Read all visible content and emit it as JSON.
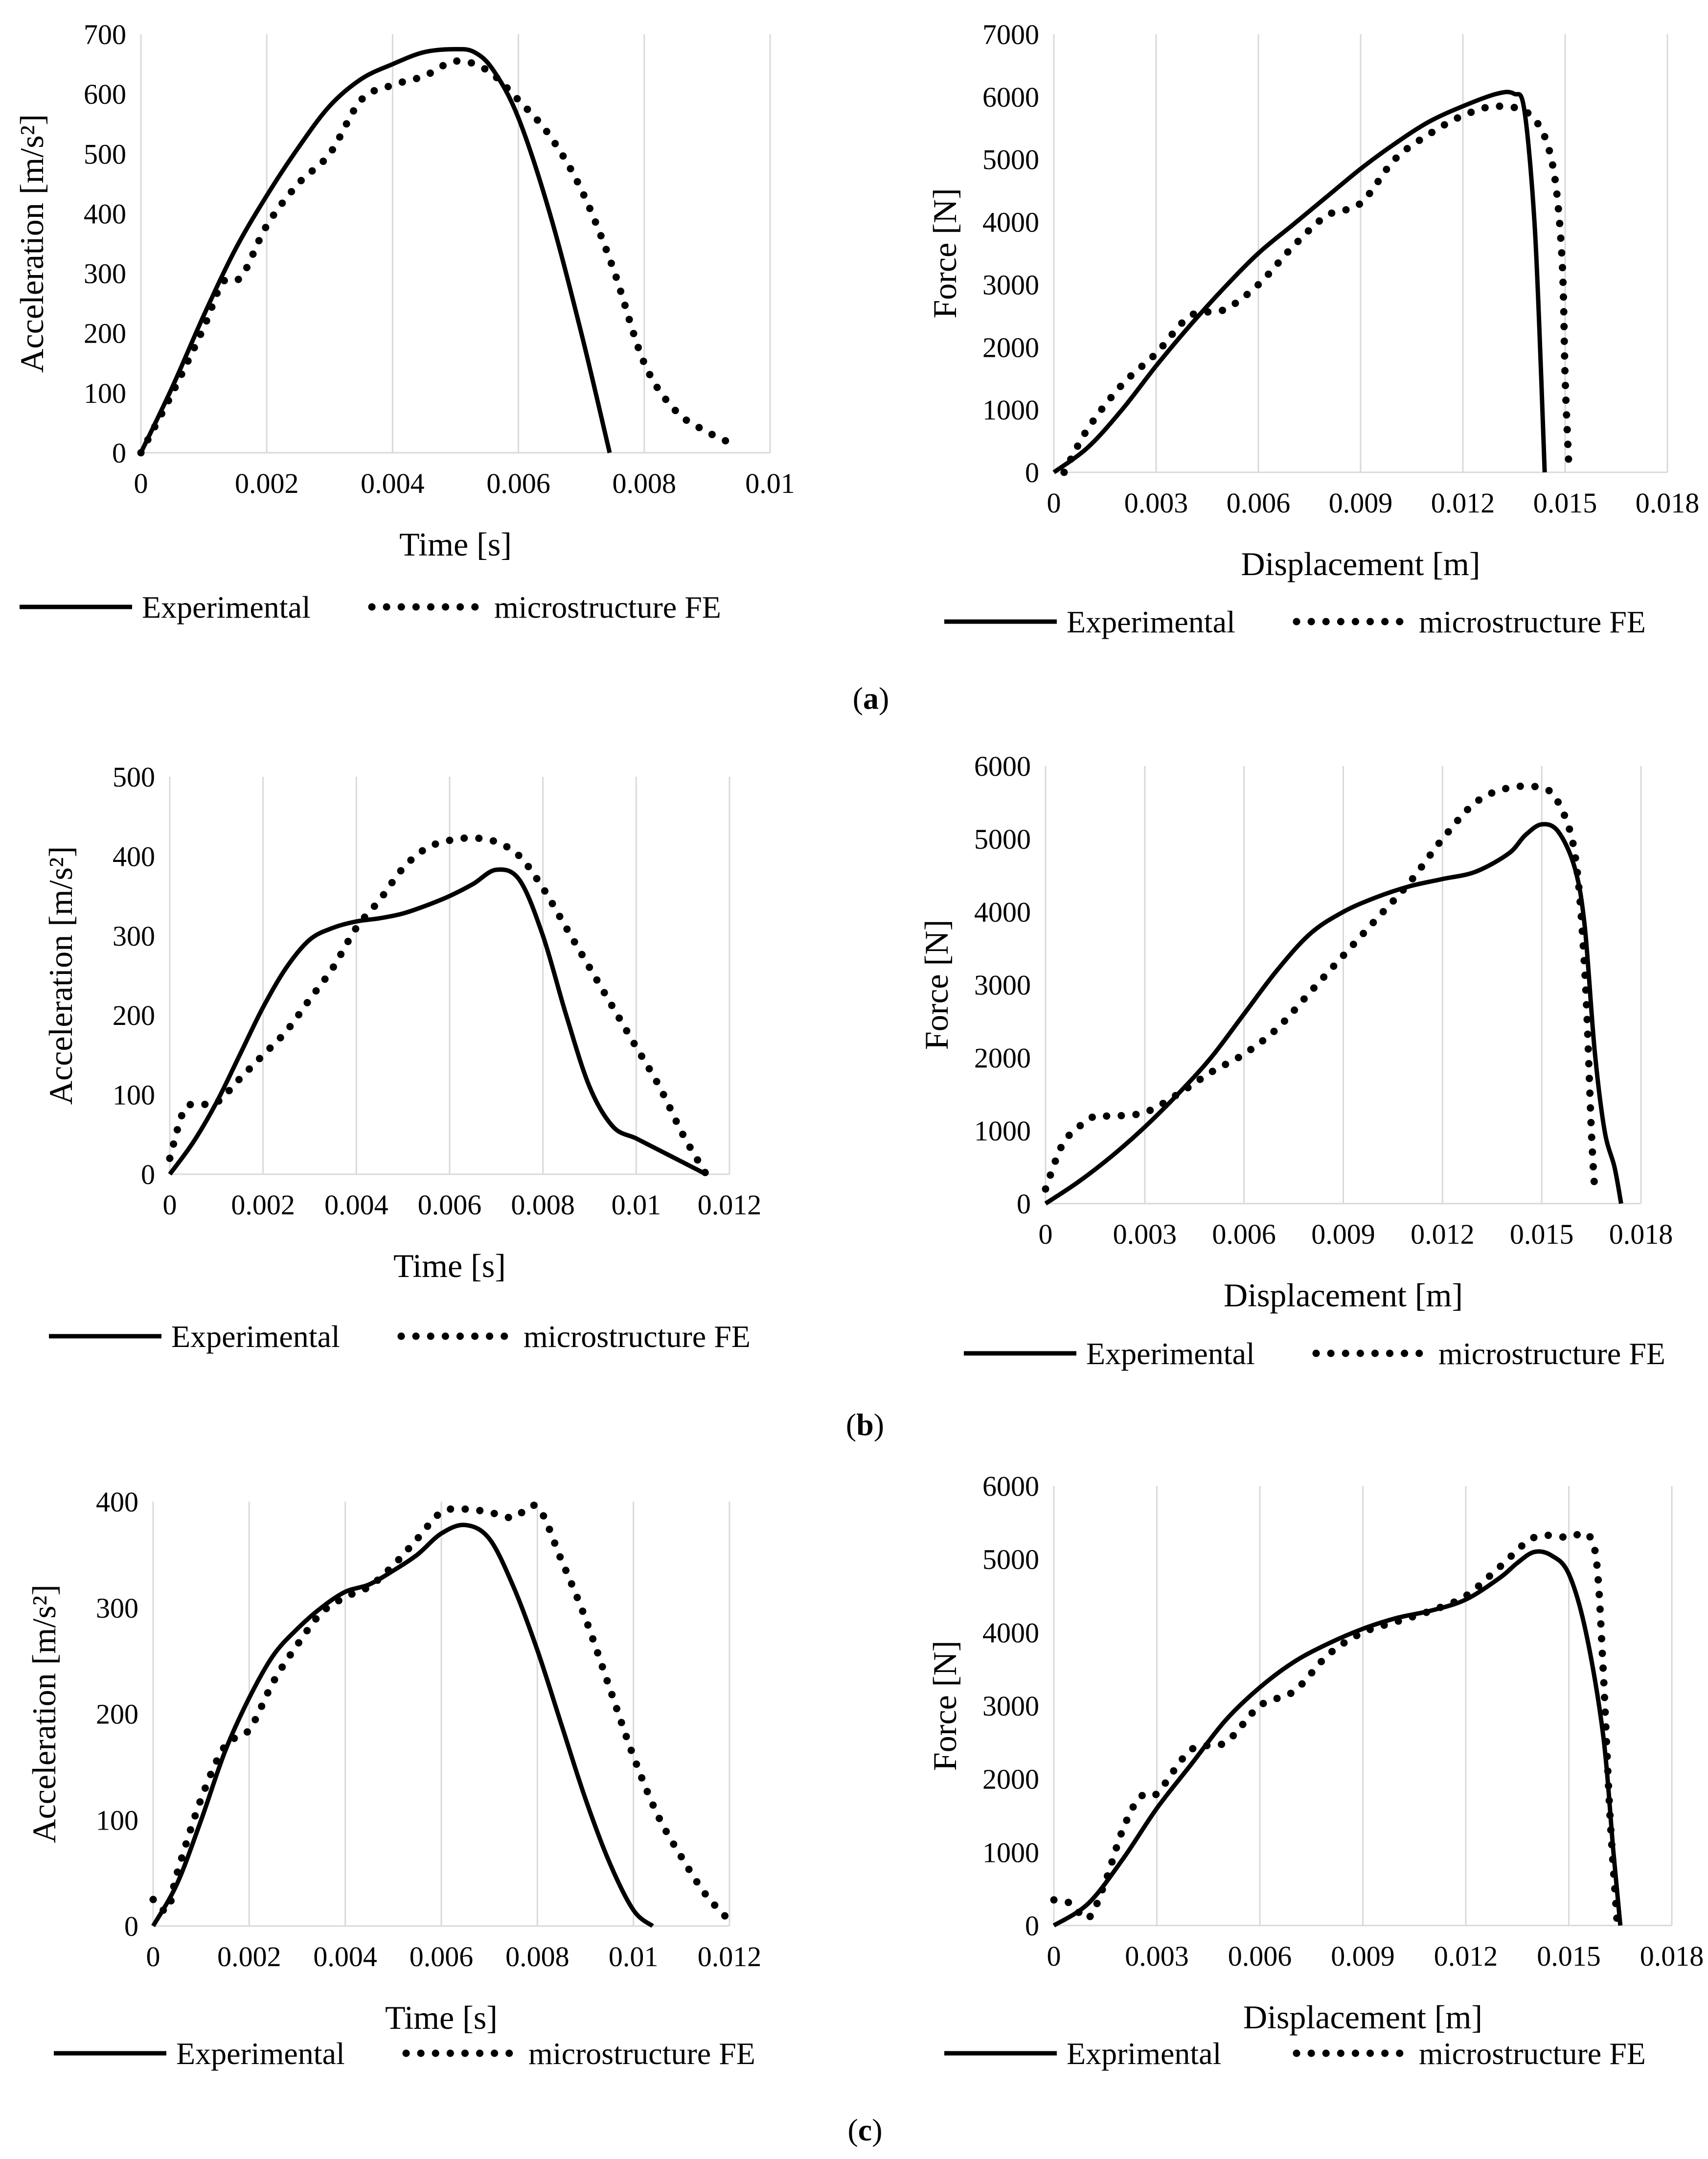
{
  "panels": [
    {
      "open": "(",
      "letter": "a",
      "close": ")"
    },
    {
      "open": "(",
      "letter": "b",
      "close": ")"
    },
    {
      "open": "(",
      "letter": "c",
      "close": ")"
    }
  ],
  "chart_data": [
    {
      "type": "line",
      "panel": "a",
      "xlabel": "Time [s]",
      "ylabel": "Acceleration [m/s²]",
      "xlim": [
        0,
        0.01
      ],
      "ylim": [
        0,
        700
      ],
      "xticks": [
        0,
        0.002,
        0.004,
        0.006,
        0.008,
        0.01
      ],
      "xtick_labels": [
        "0",
        "0.002",
        "0.004",
        "0.006",
        "0.008",
        "0.01"
      ],
      "yticks": [
        0,
        100,
        200,
        300,
        400,
        500,
        600,
        700
      ],
      "ytick_labels": [
        "0",
        "100",
        "200",
        "300",
        "400",
        "500",
        "600",
        "700"
      ],
      "grid": "vertical",
      "legend": "bottom",
      "series": [
        {
          "name": "Experimental",
          "style": "solid",
          "x": [
            0,
            0.0005,
            0.001,
            0.0015,
            0.002,
            0.0025,
            0.003,
            0.0035,
            0.004,
            0.0045,
            0.005,
            0.0053,
            0.0056,
            0.006,
            0.0065,
            0.007,
            0.00745
          ],
          "y": [
            0,
            110,
            230,
            340,
            430,
            510,
            580,
            625,
            650,
            670,
            675,
            670,
            640,
            560,
            400,
            200,
            0
          ]
        },
        {
          "name": "microstructure FE",
          "style": "dotted",
          "x": [
            0,
            0.0005,
            0.001,
            0.0013,
            0.0016,
            0.002,
            0.0025,
            0.003,
            0.0035,
            0.004,
            0.0045,
            0.005,
            0.0055,
            0.006,
            0.0065,
            0.007,
            0.0075,
            0.008,
            0.0085,
            0.009,
            0.0094
          ],
          "y": [
            0,
            100,
            210,
            285,
            295,
            380,
            450,
            500,
            590,
            615,
            630,
            655,
            640,
            590,
            530,
            440,
            310,
            150,
            70,
            35,
            15
          ]
        }
      ]
    },
    {
      "type": "line",
      "panel": "a",
      "xlabel": "Displacement [m]",
      "ylabel": "Force [N]",
      "xlim": [
        0,
        0.018
      ],
      "ylim": [
        0,
        7000
      ],
      "xticks": [
        0,
        0.003,
        0.006,
        0.009,
        0.012,
        0.015,
        0.018
      ],
      "xtick_labels": [
        "0",
        "0.003",
        "0.006",
        "0.009",
        "0.012",
        "0.015",
        "0.018"
      ],
      "yticks": [
        0,
        1000,
        2000,
        3000,
        4000,
        5000,
        6000,
        7000
      ],
      "ytick_labels": [
        "0",
        "1000",
        "2000",
        "3000",
        "4000",
        "5000",
        "6000",
        "7000"
      ],
      "grid": "vertical",
      "legend": "bottom",
      "series": [
        {
          "name": "Experimental",
          "style": "solid",
          "x": [
            0,
            0.001,
            0.002,
            0.003,
            0.004,
            0.005,
            0.006,
            0.007,
            0.008,
            0.009,
            0.01,
            0.011,
            0.012,
            0.013,
            0.0135,
            0.0138,
            0.0141,
            0.0143,
            0.0144
          ],
          "y": [
            0,
            400,
            1000,
            1700,
            2350,
            2950,
            3500,
            3950,
            4400,
            4850,
            5250,
            5600,
            5850,
            6050,
            6050,
            5800,
            4000,
            1500,
            0
          ]
        },
        {
          "name": "microstructure FE",
          "style": "dotted",
          "x": [
            0.0003,
            0.001,
            0.002,
            0.003,
            0.004,
            0.005,
            0.006,
            0.007,
            0.008,
            0.009,
            0.01,
            0.011,
            0.012,
            0.013,
            0.014,
            0.0146,
            0.0149,
            0.015,
            0.0151
          ],
          "y": [
            0,
            700,
            1400,
            1900,
            2500,
            2600,
            3000,
            3600,
            4100,
            4300,
            5000,
            5400,
            5700,
            5850,
            5700,
            5000,
            3500,
            1500,
            200
          ]
        }
      ]
    },
    {
      "type": "line",
      "panel": "b",
      "xlabel": "Time [s]",
      "ylabel": "Acceleration [m/s²]",
      "xlim": [
        0,
        0.012
      ],
      "ylim": [
        0,
        500
      ],
      "xticks": [
        0,
        0.002,
        0.004,
        0.006,
        0.008,
        0.01,
        0.012
      ],
      "xtick_labels": [
        "0",
        "0.002",
        "0.004",
        "0.006",
        "0.008",
        "0.01",
        "0.012"
      ],
      "yticks": [
        0,
        100,
        200,
        300,
        400,
        500
      ],
      "ytick_labels": [
        "0",
        "100",
        "200",
        "300",
        "400",
        "500"
      ],
      "grid": "vertical",
      "legend": "bottom",
      "series": [
        {
          "name": "Experimental",
          "style": "solid",
          "x": [
            0,
            0.0005,
            0.001,
            0.0015,
            0.002,
            0.0025,
            0.003,
            0.0035,
            0.004,
            0.0045,
            0.005,
            0.0055,
            0.006,
            0.0065,
            0.007,
            0.0075,
            0.008,
            0.0085,
            0.009,
            0.0095,
            0.01,
            0.0105,
            0.011,
            0.0115
          ],
          "y": [
            0,
            40,
            90,
            150,
            210,
            260,
            295,
            310,
            318,
            322,
            328,
            338,
            350,
            365,
            383,
            370,
            300,
            200,
            110,
            60,
            45,
            30,
            15,
            0
          ]
        },
        {
          "name": "microstructure FE",
          "style": "dotted",
          "x": [
            0,
            0.0003,
            0.0006,
            0.001,
            0.0015,
            0.002,
            0.0025,
            0.003,
            0.0035,
            0.004,
            0.0045,
            0.005,
            0.0055,
            0.006,
            0.0065,
            0.007,
            0.0075,
            0.008,
            0.0085,
            0.009,
            0.0095,
            0.01,
            0.0105,
            0.011,
            0.0115
          ],
          "y": [
            20,
            80,
            88,
            90,
            120,
            150,
            180,
            220,
            260,
            310,
            345,
            385,
            410,
            420,
            423,
            418,
            400,
            360,
            310,
            260,
            210,
            160,
            110,
            50,
            0
          ]
        }
      ]
    },
    {
      "type": "line",
      "panel": "b",
      "xlabel": "Displacement [m]",
      "ylabel": "Force [N]",
      "xlim": [
        0,
        0.018
      ],
      "ylim": [
        0,
        6000
      ],
      "xticks": [
        0,
        0.003,
        0.006,
        0.009,
        0.012,
        0.015,
        0.018
      ],
      "xtick_labels": [
        "0",
        "0.003",
        "0.006",
        "0.009",
        "0.012",
        "0.015",
        "0.018"
      ],
      "yticks": [
        0,
        1000,
        2000,
        3000,
        4000,
        5000,
        6000
      ],
      "ytick_labels": [
        "0",
        "1000",
        "2000",
        "3000",
        "4000",
        "5000",
        "6000"
      ],
      "grid": "vertical",
      "legend": "bottom",
      "series": [
        {
          "name": "Experimental",
          "style": "solid",
          "x": [
            0,
            0.001,
            0.002,
            0.003,
            0.004,
            0.005,
            0.006,
            0.007,
            0.008,
            0.009,
            0.01,
            0.011,
            0.012,
            0.013,
            0.014,
            0.0145,
            0.015,
            0.0155,
            0.016,
            0.0163,
            0.0166,
            0.0169,
            0.0172,
            0.0174
          ],
          "y": [
            0,
            300,
            650,
            1050,
            1500,
            2000,
            2600,
            3200,
            3700,
            4000,
            4200,
            4350,
            4450,
            4550,
            4800,
            5050,
            5200,
            5100,
            4600,
            3800,
            2100,
            1000,
            500,
            0
          ]
        },
        {
          "name": "microstructure FE",
          "style": "dotted",
          "x": [
            0,
            0.0005,
            0.001,
            0.0015,
            0.002,
            0.003,
            0.004,
            0.005,
            0.006,
            0.007,
            0.008,
            0.009,
            0.01,
            0.011,
            0.012,
            0.013,
            0.014,
            0.015,
            0.0155,
            0.016,
            0.0163,
            0.0165,
            0.0166
          ],
          "y": [
            200,
            800,
            1050,
            1200,
            1200,
            1250,
            1500,
            1800,
            2050,
            2400,
            2900,
            3400,
            3900,
            4400,
            5000,
            5500,
            5700,
            5700,
            5500,
            4800,
            3200,
            1000,
            200
          ]
        }
      ]
    },
    {
      "type": "line",
      "panel": "c",
      "xlabel": "Time [s]",
      "ylabel": "Acceleration [m/s²]",
      "xlim": [
        0,
        0.012
      ],
      "ylim": [
        0,
        400
      ],
      "xticks": [
        0,
        0.002,
        0.004,
        0.006,
        0.008,
        0.01,
        0.012
      ],
      "xtick_labels": [
        "0",
        "0.002",
        "0.004",
        "0.006",
        "0.008",
        "0.01",
        "0.012"
      ],
      "yticks": [
        0,
        100,
        200,
        300,
        400
      ],
      "ytick_labels": [
        "0",
        "100",
        "200",
        "300",
        "400"
      ],
      "grid": "vertical",
      "legend": "bottom",
      "series": [
        {
          "name": "Experimental",
          "style": "solid",
          "x": [
            0,
            0.0005,
            0.001,
            0.0015,
            0.002,
            0.0025,
            0.003,
            0.0035,
            0.004,
            0.0045,
            0.005,
            0.0055,
            0.006,
            0.0065,
            0.007,
            0.0075,
            0.008,
            0.0085,
            0.009,
            0.0095,
            0.01,
            0.0104
          ],
          "y": [
            0,
            40,
            100,
            165,
            215,
            255,
            280,
            300,
            315,
            322,
            335,
            350,
            370,
            378,
            365,
            320,
            260,
            190,
            120,
            60,
            15,
            0
          ]
        },
        {
          "name": "microstructure FE",
          "style": "dotted",
          "x": [
            0,
            0.0003,
            0.0005,
            0.001,
            0.0015,
            0.002,
            0.0025,
            0.003,
            0.0035,
            0.004,
            0.0045,
            0.005,
            0.0055,
            0.006,
            0.0065,
            0.007,
            0.0075,
            0.008,
            0.0085,
            0.009,
            0.0095,
            0.01,
            0.0105,
            0.011,
            0.0115,
            0.012
          ],
          "y": [
            25,
            15,
            50,
            120,
            170,
            185,
            230,
            265,
            295,
            310,
            320,
            340,
            365,
            390,
            393,
            390,
            385,
            395,
            345,
            290,
            225,
            160,
            105,
            65,
            30,
            5
          ]
        }
      ]
    },
    {
      "type": "line",
      "panel": "c",
      "xlabel": "Displacement [m]",
      "ylabel": "Force [N]",
      "xlim": [
        0,
        0.018
      ],
      "ylim": [
        0,
        6000
      ],
      "xticks": [
        0,
        0.003,
        0.006,
        0.009,
        0.012,
        0.015,
        0.018
      ],
      "xtick_labels": [
        "0",
        "0.003",
        "0.006",
        "0.009",
        "0.012",
        "0.015",
        "0.018"
      ],
      "yticks": [
        0,
        1000,
        2000,
        3000,
        4000,
        5000,
        6000
      ],
      "ytick_labels": [
        "0",
        "1000",
        "2000",
        "3000",
        "4000",
        "5000",
        "6000"
      ],
      "grid": "vertical",
      "legend": "bottom",
      "series": [
        {
          "name": "Exprimental",
          "style": "solid",
          "x": [
            0,
            0.001,
            0.002,
            0.003,
            0.004,
            0.005,
            0.006,
            0.007,
            0.008,
            0.009,
            0.01,
            0.011,
            0.012,
            0.013,
            0.0135,
            0.014,
            0.0145,
            0.015,
            0.0155,
            0.016,
            0.0163,
            0.0165
          ],
          "y": [
            0,
            300,
            900,
            1600,
            2200,
            2800,
            3250,
            3600,
            3850,
            4050,
            4200,
            4300,
            4450,
            4750,
            4950,
            5100,
            5050,
            4800,
            4000,
            2600,
            1000,
            0
          ]
        },
        {
          "name": "microstructure FE",
          "style": "dotted",
          "x": [
            0,
            0.0005,
            0.001,
            0.0015,
            0.002,
            0.0025,
            0.003,
            0.004,
            0.005,
            0.006,
            0.007,
            0.008,
            0.009,
            0.01,
            0.011,
            0.012,
            0.013,
            0.014,
            0.015,
            0.0155,
            0.0158,
            0.016,
            0.0162,
            0.0164
          ],
          "y": [
            350,
            300,
            100,
            600,
            1300,
            1750,
            1800,
            2400,
            2500,
            3000,
            3200,
            3700,
            4000,
            4150,
            4300,
            4500,
            4900,
            5300,
            5300,
            5350,
            5000,
            3500,
            1500,
            100
          ]
        }
      ]
    }
  ]
}
